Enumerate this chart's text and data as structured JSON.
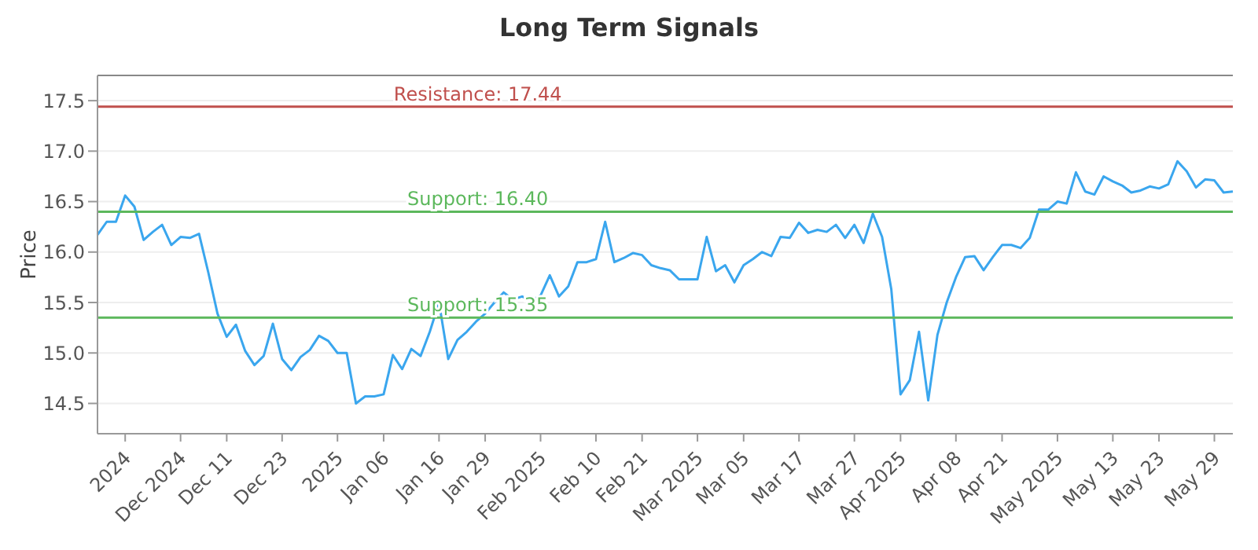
{
  "chart_data": {
    "type": "line",
    "title": "Long Term Signals",
    "ylabel": "Price",
    "categories": [
      null,
      null,
      null,
      "2024",
      null,
      null,
      null,
      null,
      null,
      "Dec 2024",
      null,
      null,
      null,
      null,
      "Dec 11",
      null,
      null,
      null,
      null,
      null,
      "Dec 23",
      null,
      null,
      null,
      null,
      null,
      "2025",
      null,
      null,
      null,
      null,
      "Jan 06",
      null,
      null,
      null,
      null,
      null,
      "Jan 16",
      null,
      null,
      null,
      null,
      "Jan 29",
      null,
      null,
      null,
      null,
      null,
      "Feb 2025",
      null,
      null,
      null,
      null,
      null,
      "Feb 10",
      null,
      null,
      null,
      null,
      "Feb 21",
      null,
      null,
      null,
      null,
      null,
      "Mar 2025",
      null,
      null,
      null,
      null,
      "Mar 05",
      null,
      null,
      null,
      null,
      null,
      "Mar 17",
      null,
      null,
      null,
      null,
      null,
      "Mar 27",
      null,
      null,
      null,
      null,
      "Apr 2025",
      null,
      null,
      null,
      null,
      null,
      "Apr 08",
      null,
      null,
      null,
      null,
      "Apr 21",
      null,
      null,
      null,
      null,
      null,
      "May 2025",
      null,
      null,
      null,
      null,
      null,
      "May 13",
      null,
      null,
      null,
      null,
      "May 23",
      null,
      null,
      null,
      null,
      null,
      "May 29",
      null,
      null
    ],
    "series": [
      {
        "color": "#3aa6ee",
        "values": [
          16.17,
          16.3,
          16.3,
          16.56,
          16.45,
          16.12,
          16.2,
          16.27,
          16.07,
          16.15,
          16.14,
          16.18,
          15.8,
          15.39,
          15.16,
          15.28,
          15.02,
          14.88,
          14.97,
          15.29,
          14.94,
          14.83,
          14.96,
          15.03,
          15.17,
          15.12,
          15.0,
          15.0,
          14.5,
          14.57,
          14.57,
          14.59,
          14.98,
          14.84,
          15.04,
          14.97,
          15.21,
          15.5,
          14.94,
          15.13,
          15.21,
          15.31,
          15.39,
          15.5,
          15.6,
          15.53,
          15.56,
          15.52,
          15.57,
          15.77,
          15.56,
          15.66,
          15.9,
          15.9,
          15.93,
          16.3,
          15.9,
          15.94,
          15.99,
          15.97,
          15.87,
          15.84,
          15.82,
          15.73,
          15.73,
          15.73,
          16.15,
          15.81,
          15.87,
          15.7,
          15.87,
          15.93,
          16.0,
          15.96,
          16.15,
          16.14,
          16.29,
          16.19,
          16.22,
          16.2,
          16.27,
          16.14,
          16.27,
          16.09,
          16.38,
          16.15,
          15.63,
          14.59,
          14.73,
          15.21,
          14.53,
          15.18,
          15.5,
          15.75,
          15.95,
          15.96,
          15.82,
          15.95,
          16.07,
          16.07,
          16.04,
          16.14,
          16.42,
          16.42,
          16.5,
          16.48,
          16.79,
          16.6,
          16.57,
          16.75,
          16.7,
          16.66,
          16.59,
          16.61,
          16.65,
          16.63,
          16.67,
          16.9,
          16.8,
          16.64,
          16.72,
          16.71,
          16.59,
          16.6
        ]
      }
    ],
    "ylim": [
      14.2,
      17.75
    ],
    "yticks": [
      14.5,
      {
        "value": 15,
        "label": "15.0"
      },
      15.5,
      {
        "value": 16,
        "label": "16.0"
      },
      16.5,
      {
        "value": 17,
        "label": "17.0"
      },
      17.5
    ],
    "grid": "y",
    "marker": "none",
    "line_style": "solid",
    "legend": false,
    "ref_lines": [
      {
        "axis": "y",
        "value": 17.44,
        "label": "Resistance: 17.44",
        "color": "#c0504d"
      },
      {
        "axis": "y",
        "value": 16.4,
        "label": "Support: 16.40",
        "color": "#5cb85c"
      },
      {
        "axis": "y",
        "value": 15.35,
        "label": "Support: 15.35",
        "color": "#5cb85c"
      }
    ]
  }
}
